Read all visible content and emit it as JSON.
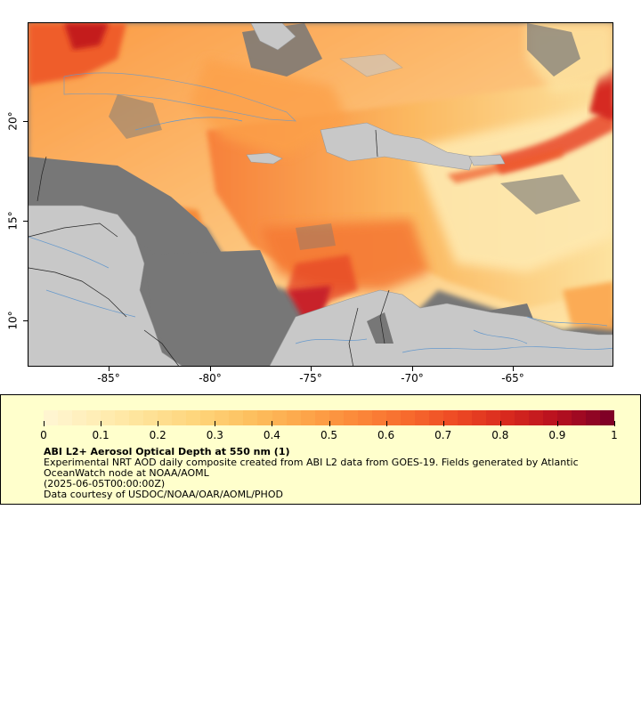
{
  "map": {
    "latitude_labels": [
      "20°",
      "15°",
      "10°"
    ],
    "longitude_labels": [
      "-85°",
      "-80°",
      "-75°",
      "-70°",
      "-65°"
    ],
    "colors": {
      "ocean_nodata": "#777777",
      "land": "#c8c8c8",
      "rivers": "#6699cc",
      "borders": "#999999"
    }
  },
  "legend": {
    "tick_labels": [
      "0",
      "0.1",
      "0.2",
      "0.3",
      "0.4",
      "0.5",
      "0.6",
      "0.7",
      "0.8",
      "0.9",
      "1"
    ],
    "title": "ABI L2+ Aerosol Optical Depth at 550 nm (1)",
    "description_line1": "Experimental NRT AOD daily composite created from ABI L2 data from GOES-19. Fields generated by Atlantic",
    "description_line2": "OceanWatch node at NOAA/AOML",
    "timestamp": "(2025-06-05T00:00:00Z)",
    "credit": "Data courtesy of USDOC/NOAA/OAR/AOML/PHOD",
    "colorscale": [
      "#fff5d0",
      "#ffedb2",
      "#fee194",
      "#fed378",
      "#fdbf5e",
      "#fda64a",
      "#fc8a3a",
      "#f76c2e",
      "#ee4a24",
      "#d92a1e",
      "#b8101f",
      "#800026"
    ]
  }
}
